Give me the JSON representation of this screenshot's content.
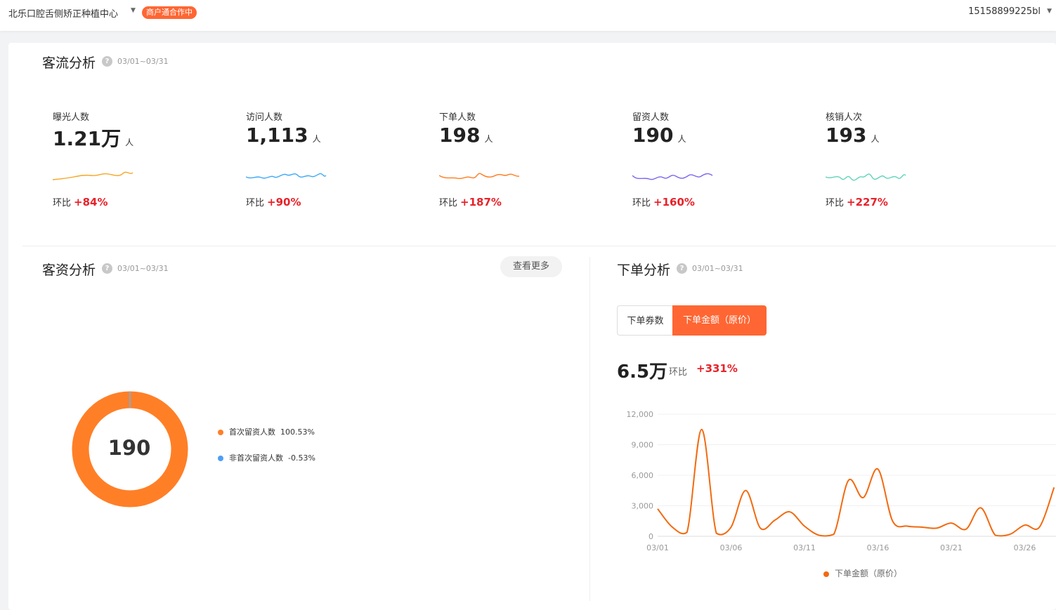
{
  "header": {
    "store_name": "北乐口腔舌侧矫正种植中心",
    "badge": "商户通合作中",
    "account": "15158899225bl"
  },
  "traffic": {
    "title": "客流分析",
    "date_range": "03/01~03/31",
    "compare_label": "环比",
    "metrics": [
      {
        "label": "曝光人数",
        "value": "1.21万",
        "unit": "人",
        "change": "+84%",
        "color": "#f5a623"
      },
      {
        "label": "访问人数",
        "value": "1,113",
        "unit": "人",
        "change": "+90%",
        "color": "#3fa9f5"
      },
      {
        "label": "下单人数",
        "value": "198",
        "unit": "人",
        "change": "+187%",
        "color": "#ff7a1a"
      },
      {
        "label": "留资人数",
        "value": "190",
        "unit": "人",
        "change": "+160%",
        "color": "#7b68ee"
      },
      {
        "label": "核销人次",
        "value": "193",
        "unit": "人",
        "change": "+227%",
        "color": "#5fd4b8"
      }
    ]
  },
  "leads": {
    "title": "客资分析",
    "date_range": "03/01~03/31",
    "more_button": "查看更多",
    "donut_center": "190",
    "legend": [
      {
        "label": "首次留资人数",
        "value": "100.53%",
        "color": "#ff7f27"
      },
      {
        "label": "非首次留资人数",
        "value": "-0.53%",
        "color": "#4e9ef5"
      }
    ]
  },
  "orders": {
    "title": "下单分析",
    "date_range": "03/01~03/31",
    "tabs": [
      "下单券数",
      "下单金额（原价）"
    ],
    "active_tab": 1,
    "total": "6.5万",
    "compare_label": "环比",
    "change": "+331%"
  },
  "chart_data": {
    "type": "line",
    "title": "",
    "xlabel": "",
    "ylabel": "",
    "ylim": [
      0,
      12000
    ],
    "yticks": [
      "12,000",
      "9,000",
      "6,000",
      "3,000",
      "0"
    ],
    "xticks": [
      "03/01",
      "03/06",
      "03/11",
      "03/16",
      "03/21",
      "03/26"
    ],
    "x": [
      "03/01",
      "03/02",
      "03/03",
      "03/04",
      "03/05",
      "03/06",
      "03/07",
      "03/08",
      "03/09",
      "03/10",
      "03/11",
      "03/12",
      "03/13",
      "03/14",
      "03/15",
      "03/16",
      "03/17",
      "03/18",
      "03/19",
      "03/20",
      "03/21",
      "03/22",
      "03/23",
      "03/24",
      "03/25",
      "03/26",
      "03/27",
      "03/28"
    ],
    "series": [
      {
        "name": "下单金额（原价）",
        "color": "#f26a10",
        "values": [
          2700,
          900,
          400,
          10500,
          300,
          900,
          4500,
          800,
          1600,
          2400,
          1000,
          100,
          200,
          5500,
          3800,
          6600,
          1500,
          1000,
          900,
          800,
          1300,
          700,
          2800,
          100,
          200,
          1100,
          900,
          4800
        ]
      }
    ],
    "grid": true,
    "legend_position": "bottom"
  }
}
